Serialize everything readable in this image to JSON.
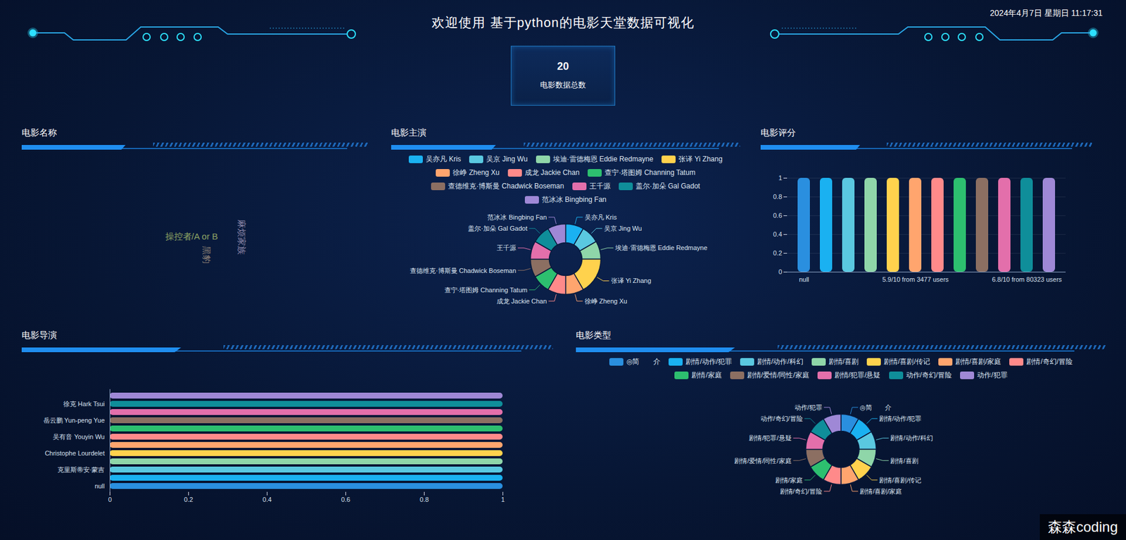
{
  "header": {
    "title": "欢迎使用 基于python的电影天堂数据可视化",
    "datetime": "2024年4月7日 星期日 11:17:31",
    "kpi": {
      "value": 20,
      "label": "电影数据总数"
    },
    "watermark": "森森coding"
  },
  "chart_data": [
    {
      "type": "wordcloud",
      "title": "电影名称",
      "words": [
        "操控者/A or B",
        "黑豹",
        "麻烦家族"
      ],
      "colors": [
        "#8fa464",
        "#8a7f74",
        "#8b86a8"
      ]
    },
    {
      "type": "pie",
      "title": "电影主演",
      "legend": "top",
      "categories": [
        "吴亦凡 Kris",
        "吴京 Jing Wu",
        "埃迪·雷德梅恩 Eddie Redmayne",
        "张译 Yi Zhang",
        "徐峥 Zheng Xu",
        "成龙 Jackie Chan",
        "查宁·塔图姆 Channing Tatum",
        "查德维克·博斯曼 Chadwick Boseman",
        "王千源",
        "盖尔·加朵 Gal Gadot",
        "范冰冰 Bingbing Fan"
      ],
      "values": [
        1,
        1,
        1,
        2,
        1,
        1,
        1,
        1,
        1,
        1,
        1
      ],
      "colors": [
        "#1ab1f1",
        "#5ac8e0",
        "#8fd6a9",
        "#ffd24d",
        "#ffa56e",
        "#ff8a8a",
        "#2dbf6f",
        "#8c6f62",
        "#e36fab",
        "#0f8e9a",
        "#9f88d6"
      ]
    },
    {
      "type": "bar",
      "title": "电影评分",
      "categories": [
        "null",
        null,
        null,
        null,
        null,
        "5.9/10 from 3477 users",
        null,
        null,
        null,
        null,
        "6.8/10 from 80323 users",
        null
      ],
      "values": [
        1,
        1,
        1,
        1,
        1,
        1,
        1,
        1,
        1,
        1,
        1,
        1
      ],
      "colors": [
        "#2a8fdf",
        "#1ab1f1",
        "#5ac8e0",
        "#8fd6a9",
        "#ffd24d",
        "#ffa56e",
        "#ff8a8a",
        "#2dbf6f",
        "#8c6f62",
        "#e36fab",
        "#0f8e9a",
        "#9f88d6"
      ],
      "ylim": [
        0,
        1
      ],
      "yticks": [
        0,
        0.2,
        0.4,
        0.6,
        0.8,
        1
      ],
      "grid": true
    },
    {
      "type": "bar",
      "title": "电影导演",
      "orientation": "horizontal",
      "categories": [
        "null",
        null,
        "克里斯蒂安·蒙吉",
        null,
        "Christophe Lourdelet",
        null,
        "吴有音 Youyin Wu",
        null,
        "岳云鹏 Yun-peng Yue",
        null,
        "徐克 Hark Tsui",
        null
      ],
      "values": [
        1,
        1,
        1,
        1,
        1,
        1,
        1,
        1,
        1,
        1,
        1,
        1
      ],
      "colors": [
        "#2a8fdf",
        "#1ab1f1",
        "#5ac8e0",
        "#8fd6a9",
        "#ffd24d",
        "#ffa56e",
        "#ff8a8a",
        "#2dbf6f",
        "#8c6f62",
        "#e36fab",
        "#0f8e9a",
        "#9f88d6"
      ],
      "xlim": [
        0,
        1
      ],
      "xticks": [
        0,
        0.2,
        0.4,
        0.6,
        0.8,
        1
      ],
      "grid": false
    },
    {
      "type": "pie",
      "title": "电影类型",
      "legend": "top",
      "categories": [
        "◎简　　介",
        "剧情/动作/犯罪",
        "剧情/动作/科幻",
        "剧情/喜剧",
        "剧情/喜剧/传记",
        "剧情/喜剧/家庭",
        "剧情/奇幻/冒险",
        "剧情/家庭",
        "剧情/爱情/同性/家庭",
        "剧情/犯罪/悬疑",
        "动作/奇幻/冒险",
        "动作/犯罪"
      ],
      "values": [
        1,
        1,
        1,
        1,
        1,
        1,
        1,
        1,
        1,
        1,
        1,
        1
      ],
      "colors": [
        "#2a8fdf",
        "#1ab1f1",
        "#5ac8e0",
        "#8fd6a9",
        "#ffd24d",
        "#ffa56e",
        "#ff8a8a",
        "#2dbf6f",
        "#8c6f62",
        "#e36fab",
        "#0f8e9a",
        "#9f88d6"
      ]
    }
  ]
}
